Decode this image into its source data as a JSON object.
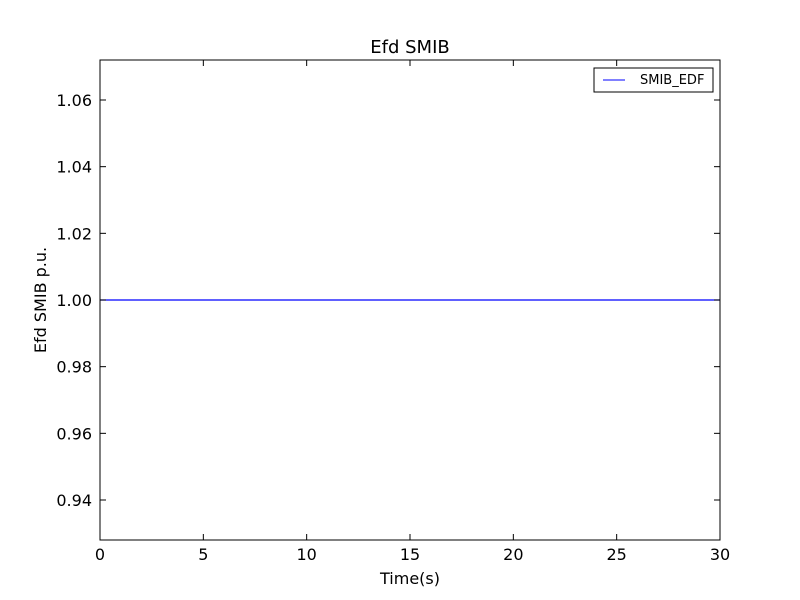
{
  "chart_data": {
    "type": "line",
    "title": "Efd SMIB",
    "xlabel": "Time(s)",
    "ylabel": "Efd SMIB p.u.",
    "xlim": [
      0,
      30
    ],
    "ylim": [
      0.928,
      1.072
    ],
    "x_ticks": [
      0,
      5,
      10,
      15,
      20,
      25,
      30
    ],
    "x_tick_labels": [
      "0",
      "5",
      "10",
      "15",
      "20",
      "25",
      "30"
    ],
    "y_ticks": [
      0.94,
      0.96,
      0.98,
      1.0,
      1.02,
      1.04,
      1.06
    ],
    "y_tick_labels": [
      "0.94",
      "0.96",
      "0.98",
      "1.00",
      "1.02",
      "1.04",
      "1.06"
    ],
    "grid": false,
    "legend_position": "top-right",
    "series": [
      {
        "name": "SMIB_EDF",
        "color": "#0000ff",
        "x": [
          0,
          30
        ],
        "y": [
          1.0,
          1.0
        ]
      }
    ]
  }
}
